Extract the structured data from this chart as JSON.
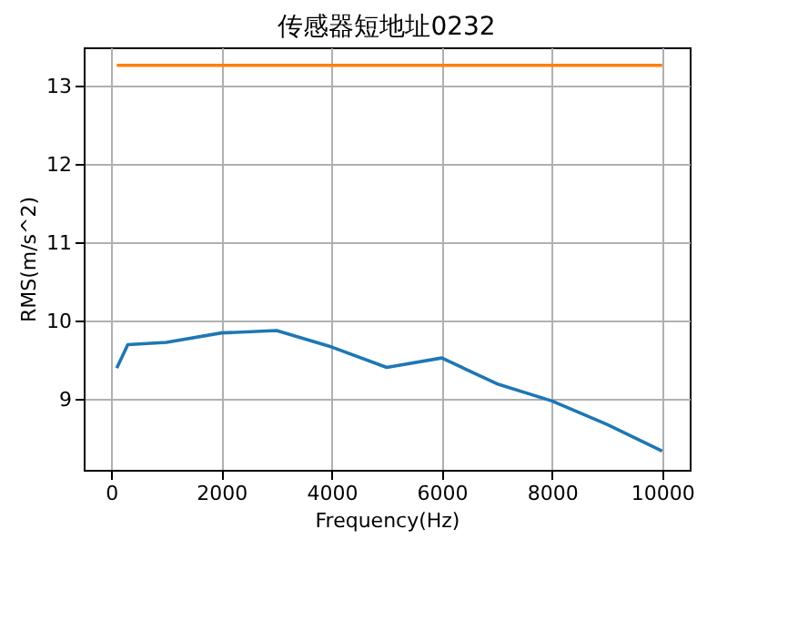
{
  "chart_data": {
    "type": "line",
    "title": "传感器短地址0232",
    "xlabel": "Frequency(Hz)",
    "ylabel": "RMS(m/s^2)",
    "xlim": [
      -500,
      10500
    ],
    "ylim": [
      8.1,
      13.5
    ],
    "xticks": [
      0,
      2000,
      4000,
      6000,
      8000,
      10000
    ],
    "yticks": [
      9,
      10,
      11,
      12,
      13
    ],
    "grid": true,
    "series": [
      {
        "color": "#1f77b4",
        "x": [
          100,
          300,
          1000,
          2000,
          3000,
          4000,
          5000,
          6000,
          7000,
          8000,
          9000,
          10000
        ],
        "values": [
          9.4,
          9.7,
          9.73,
          9.85,
          9.88,
          9.67,
          9.41,
          9.53,
          9.2,
          8.98,
          8.68,
          8.34
        ]
      },
      {
        "color": "#ff7f0e",
        "x": [
          100,
          10000
        ],
        "values": [
          13.27,
          13.27
        ]
      }
    ]
  }
}
